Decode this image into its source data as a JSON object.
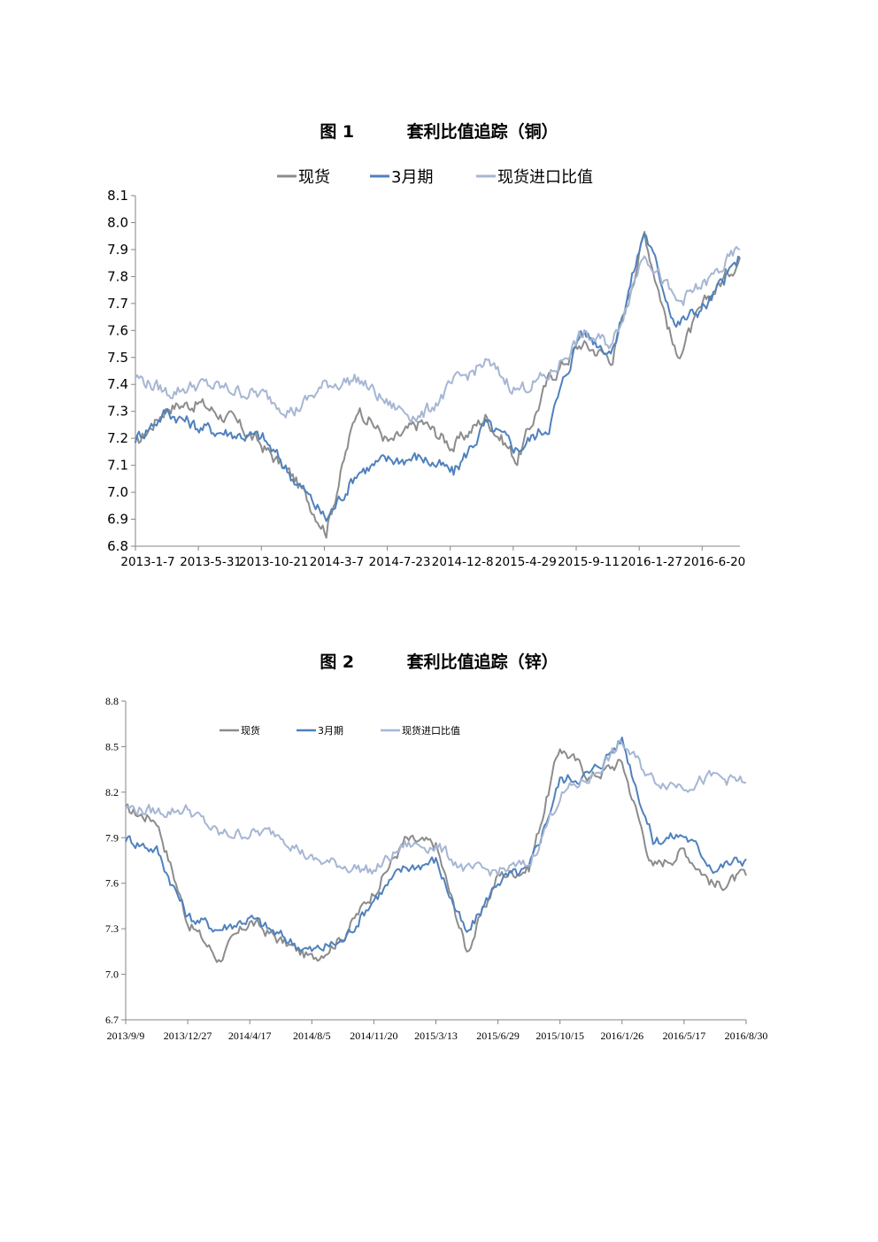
{
  "figure1": {
    "title": "图 1         套利比值追踪（铜）"
  },
  "figure2": {
    "title": "图 2         套利比值追踪（锌）"
  },
  "colors": {
    "spot": "#8c8c8c",
    "month3": "#4f81bd",
    "import_ratio": "#a6b6d4"
  },
  "chart_data": [
    {
      "type": "line",
      "title": "图 1 套利比值追踪（铜）",
      "xlabel": "",
      "ylabel": "",
      "ylim": [
        6.8,
        8.1
      ],
      "y_ticks": [
        "8.1",
        "8.0",
        "7.9",
        "7.8",
        "7.7",
        "7.6",
        "7.5",
        "7.4",
        "7.3",
        "7.2",
        "7.1",
        "7.0",
        "6.9",
        "6.8"
      ],
      "x_ticks": [
        "2013-1-7",
        "2013-5-31",
        "2013-10-21",
        "2014-3-7",
        "2014-7-23",
        "2014-12-8",
        "2015-4-29",
        "2015-9-11",
        "2016-1-27",
        "2016-6-20"
      ],
      "legend": "top-center",
      "x": [
        "2013-1-7",
        "2013-3-1",
        "2013-5-31",
        "2013-8-1",
        "2013-10-21",
        "2014-1-10",
        "2014-3-7",
        "2014-5-1",
        "2014-7-23",
        "2014-10-1",
        "2014-12-8",
        "2015-2-15",
        "2015-4-29",
        "2015-7-1",
        "2015-9-11",
        "2015-11-15",
        "2016-1-27",
        "2016-4-1",
        "2016-6-20",
        "2016-8-30"
      ],
      "series": [
        {
          "name": "现货",
          "color": "#8c8c8c",
          "values": [
            7.17,
            7.32,
            7.33,
            7.27,
            7.17,
            7.05,
            6.86,
            7.32,
            7.18,
            7.26,
            7.17,
            7.28,
            7.12,
            7.42,
            7.55,
            7.5,
            7.96,
            7.5,
            7.72,
            7.87
          ]
        },
        {
          "name": "3月期",
          "color": "#4f81bd",
          "values": [
            7.2,
            7.3,
            7.24,
            7.22,
            7.2,
            7.05,
            6.9,
            7.08,
            7.12,
            7.13,
            7.07,
            7.25,
            7.16,
            7.25,
            7.6,
            7.52,
            7.97,
            7.62,
            7.7,
            7.87
          ]
        },
        {
          "name": "现货进口比值",
          "color": "#a6b6d4",
          "values": [
            7.43,
            7.37,
            7.4,
            7.38,
            7.36,
            7.3,
            7.4,
            7.42,
            7.32,
            7.28,
            7.4,
            7.48,
            7.38,
            7.43,
            7.58,
            7.55,
            7.9,
            7.7,
            7.78,
            7.9
          ]
        }
      ]
    },
    {
      "type": "line",
      "title": "图 2 套利比值追踪（锌）",
      "xlabel": "",
      "ylabel": "",
      "ylim": [
        6.7,
        8.8
      ],
      "y_ticks": [
        "8.8",
        "8.5",
        "8.2",
        "7.9",
        "7.6",
        "7.3",
        "7.0",
        "6.7"
      ],
      "x_ticks": [
        "2013/9/9",
        "2013/12/27",
        "2014/4/17",
        "2014/8/5",
        "2014/11/20",
        "2015/3/13",
        "2015/6/29",
        "2015/10/15",
        "2016/1/26",
        "2016/5/17",
        "2016/8/30"
      ],
      "legend": "top-left",
      "x": [
        "2013/9/9",
        "2013/11/1",
        "2013/12/27",
        "2014/2/20",
        "2014/4/17",
        "2014/6/10",
        "2014/8/5",
        "2014/9/25",
        "2014/11/20",
        "2015/1/15",
        "2015/3/13",
        "2015/5/5",
        "2015/6/29",
        "2015/8/20",
        "2015/10/15",
        "2015/12/1",
        "2016/1/26",
        "2016/3/20",
        "2016/5/17",
        "2016/7/10",
        "2016/8/30"
      ],
      "series": [
        {
          "name": "现货",
          "color": "#8c8c8c",
          "values": [
            8.08,
            8.02,
            7.35,
            7.1,
            7.35,
            7.22,
            7.1,
            7.25,
            7.55,
            7.88,
            7.85,
            7.15,
            7.65,
            7.7,
            8.5,
            8.3,
            8.4,
            7.7,
            7.82,
            7.58,
            7.65
          ]
        },
        {
          "name": "3月期",
          "color": "#4f81bd",
          "values": [
            7.9,
            7.82,
            7.38,
            7.3,
            7.37,
            7.25,
            7.15,
            7.22,
            7.5,
            7.7,
            7.75,
            7.25,
            7.62,
            7.68,
            8.28,
            8.32,
            8.55,
            7.88,
            7.92,
            7.7,
            7.76
          ]
        },
        {
          "name": "现货进口比值",
          "color": "#a6b6d4",
          "values": [
            8.1,
            8.07,
            8.09,
            7.92,
            7.93,
            7.93,
            7.75,
            7.72,
            7.68,
            7.85,
            7.85,
            7.68,
            7.68,
            7.72,
            8.18,
            8.3,
            8.52,
            8.28,
            8.25,
            8.3,
            8.26
          ]
        }
      ]
    }
  ]
}
